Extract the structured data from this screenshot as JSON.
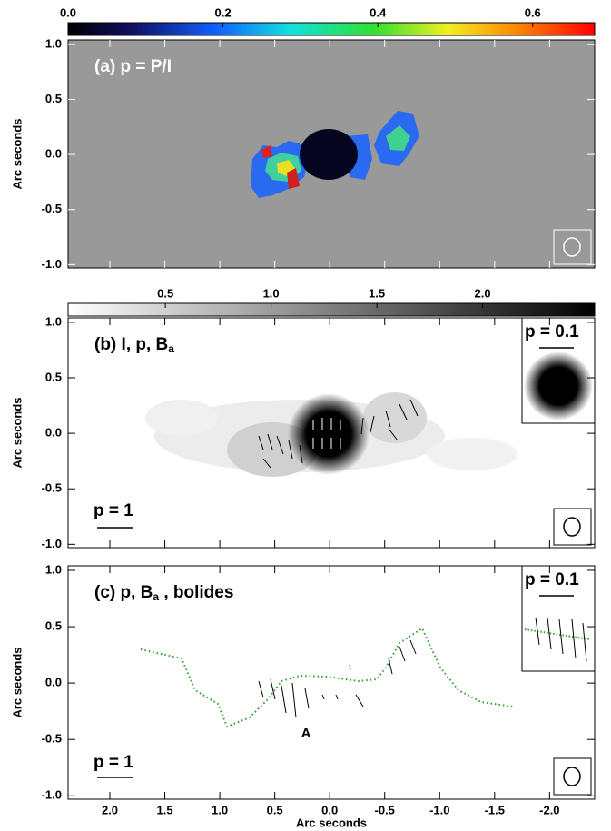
{
  "chart_data": [
    {
      "type": "image",
      "title": "(a) p = P/I",
      "ylabel": "Arc seconds",
      "ylim": [
        -1.03,
        1.04
      ],
      "yticks": [
        {
          "value": 1,
          "label": "1.0"
        },
        0.5,
        {
          "value": 0,
          "label": "0.0"
        },
        -0.5,
        {
          "value": -1,
          "label": "-1.0"
        }
      ],
      "colorbar": {
        "colormap": "rainbow",
        "clim": [
          0,
          0.68
        ],
        "ticks": [
          {
            "value": 0,
            "label": "0.0"
          },
          0.2,
          0.4,
          0.6
        ]
      }
    },
    {
      "type": "image",
      "title": "(b) I, p, B",
      "title_subscript": "a",
      "ylabel": "Arc seconds",
      "ylim": [
        -1.03,
        1.04
      ],
      "yticks": [
        {
          "value": 1,
          "label": "1.0"
        },
        0.5,
        {
          "value": 0,
          "label": "0.0"
        },
        -0.5,
        {
          "value": -1,
          "label": "-1.0"
        }
      ],
      "colorbar": {
        "colormap": "gray",
        "clim": [
          0.04,
          2.53
        ],
        "ticks": [
          0.5,
          {
            "value": 1,
            "label": "1.0"
          },
          1.5,
          {
            "value": 2,
            "label": "2.0"
          }
        ]
      },
      "scale_label": "p = 1",
      "inset_label": "p = 0.1"
    },
    {
      "type": "image",
      "title": "(c) p, B",
      "title_subscript": "a",
      "title_suffix": " , bolides",
      "ylabel": "Arc seconds",
      "xlabel": "Arc seconds",
      "xlim": [
        2.38,
        -2.41
      ],
      "xticks": [
        {
          "value": 2,
          "label": "2.0"
        },
        1.5,
        {
          "value": 1,
          "label": "1.0"
        },
        0.5,
        {
          "value": 0,
          "label": "0.0"
        },
        -0.5,
        {
          "value": -1,
          "label": "-1.0"
        },
        -1.5,
        {
          "value": -2,
          "label": "-2.0"
        }
      ],
      "ylim": [
        -1.03,
        1.04
      ],
      "yticks": [
        {
          "value": 1,
          "label": "1.0"
        },
        0.5,
        {
          "value": 0,
          "label": "0.0"
        },
        -0.5,
        {
          "value": -1,
          "label": "-1.0"
        }
      ],
      "scale_label": "p = 1",
      "inset_label": "p = 0.1",
      "annotation": "A"
    }
  ]
}
